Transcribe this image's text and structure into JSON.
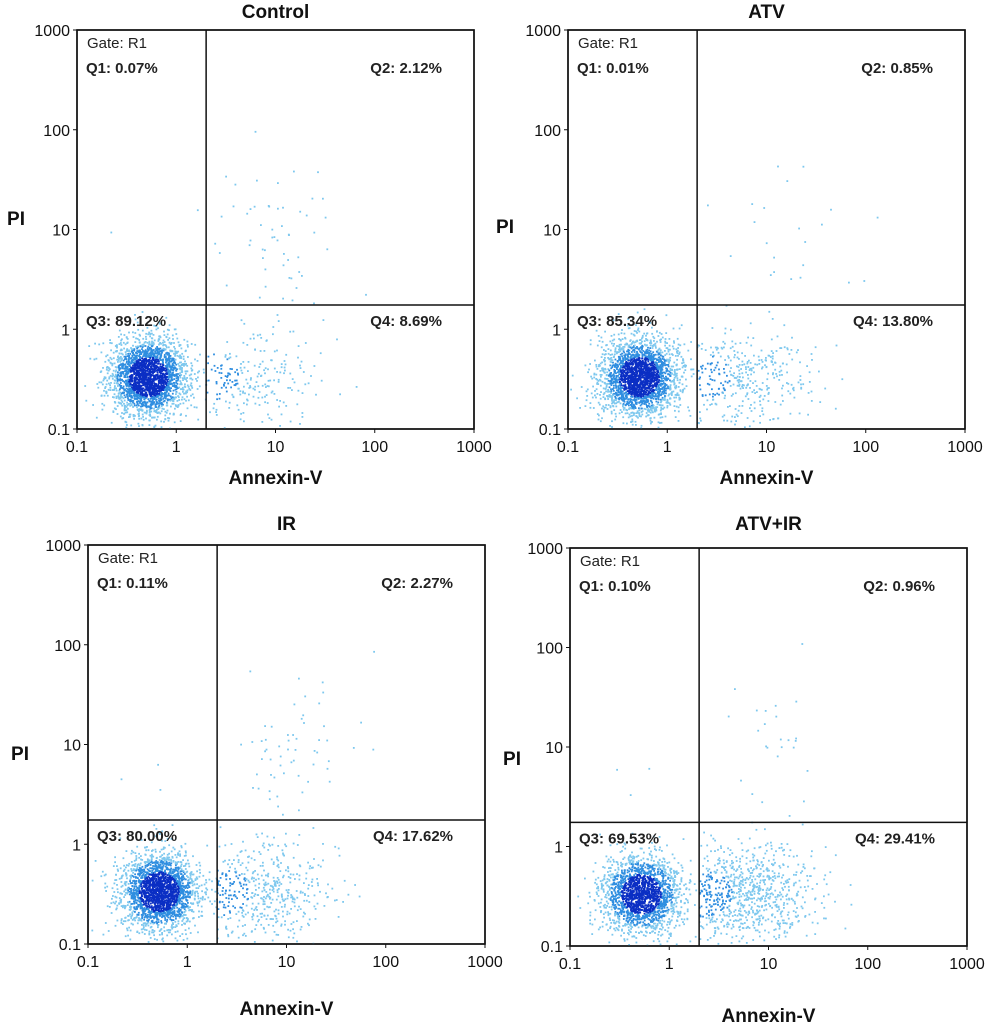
{
  "figure": {
    "x_axis_label": "Annexin-V",
    "y_axis_label": "PI",
    "gate_label": "Gate: R1"
  },
  "colors": {
    "event_light": "#7ec8ee",
    "event_mid": "#2f8ee0",
    "event_dense": "#0b2fc4",
    "frame": "#111111"
  },
  "chart_data": [
    {
      "type": "scatter",
      "title": "Control",
      "xlabel": "Annexin-V",
      "ylabel": "PI",
      "xscale": "log",
      "yscale": "log",
      "xlim": [
        0.1,
        1000
      ],
      "ylim": [
        0.1,
        1000
      ],
      "x_ticks": [
        "0.1",
        "1",
        "10",
        "100",
        "1000"
      ],
      "y_ticks": [
        "0.1",
        "1",
        "10",
        "100",
        "1000"
      ],
      "gate": "Gate: R1",
      "quadrant_x": 2,
      "quadrant_y": 1.75,
      "quadrants": {
        "Q1": "Q1: 0.07%",
        "Q2": "Q2: 2.12%",
        "Q3": "Q3: 89.12%",
        "Q4": "Q4: 8.69%"
      },
      "quadrant_percent": {
        "Q1": 0.07,
        "Q2": 2.12,
        "Q3": 89.12,
        "Q4": 8.69
      }
    },
    {
      "type": "scatter",
      "title": "ATV",
      "xlabel": "Annexin-V",
      "ylabel": "PI",
      "xscale": "log",
      "yscale": "log",
      "xlim": [
        0.1,
        1000
      ],
      "ylim": [
        0.1,
        1000
      ],
      "x_ticks": [
        "0.1",
        "1",
        "10",
        "100",
        "1000"
      ],
      "y_ticks": [
        "0.1",
        "1",
        "10",
        "100",
        "1000"
      ],
      "gate": "Gate: R1",
      "quadrant_x": 2,
      "quadrant_y": 1.75,
      "quadrants": {
        "Q1": "Q1: 0.01%",
        "Q2": "Q2: 0.85%",
        "Q3": "Q3: 85.34%",
        "Q4": "Q4: 13.80%"
      },
      "quadrant_percent": {
        "Q1": 0.01,
        "Q2": 0.85,
        "Q3": 85.34,
        "Q4": 13.8
      }
    },
    {
      "type": "scatter",
      "title": "IR",
      "xlabel": "Annexin-V",
      "ylabel": "PI",
      "xscale": "log",
      "yscale": "log",
      "xlim": [
        0.1,
        1000
      ],
      "ylim": [
        0.1,
        1000
      ],
      "x_ticks": [
        "0.1",
        "1",
        "10",
        "100",
        "1000"
      ],
      "y_ticks": [
        "0.1",
        "1",
        "10",
        "100",
        "1000"
      ],
      "gate": "Gate: R1",
      "quadrant_x": 2,
      "quadrant_y": 1.75,
      "quadrants": {
        "Q1": "Q1: 0.11%",
        "Q2": "Q2: 2.27%",
        "Q3": "Q3: 80.00%",
        "Q4": "Q4: 17.62%"
      },
      "quadrant_percent": {
        "Q1": 0.11,
        "Q2": 2.27,
        "Q3": 80.0,
        "Q4": 17.62
      }
    },
    {
      "type": "scatter",
      "title": "ATV+IR",
      "xlabel": "Annexin-V",
      "ylabel": "PI",
      "xscale": "log",
      "yscale": "log",
      "xlim": [
        0.1,
        1000
      ],
      "ylim": [
        0.1,
        1000
      ],
      "x_ticks": [
        "0.1",
        "1",
        "10",
        "100",
        "1000"
      ],
      "y_ticks": [
        "0.1",
        "1",
        "10",
        "100",
        "1000"
      ],
      "gate": "Gate: R1",
      "quadrant_x": 2,
      "quadrant_y": 1.75,
      "quadrants": {
        "Q1": "Q1: 0.10%",
        "Q2": "Q2: 0.96%",
        "Q3": "Q3: 69.53%",
        "Q4": "Q4: 29.41%"
      },
      "quadrant_percent": {
        "Q1": 0.1,
        "Q2": 0.96,
        "Q3": 69.53,
        "Q4": 29.41
      }
    }
  ]
}
